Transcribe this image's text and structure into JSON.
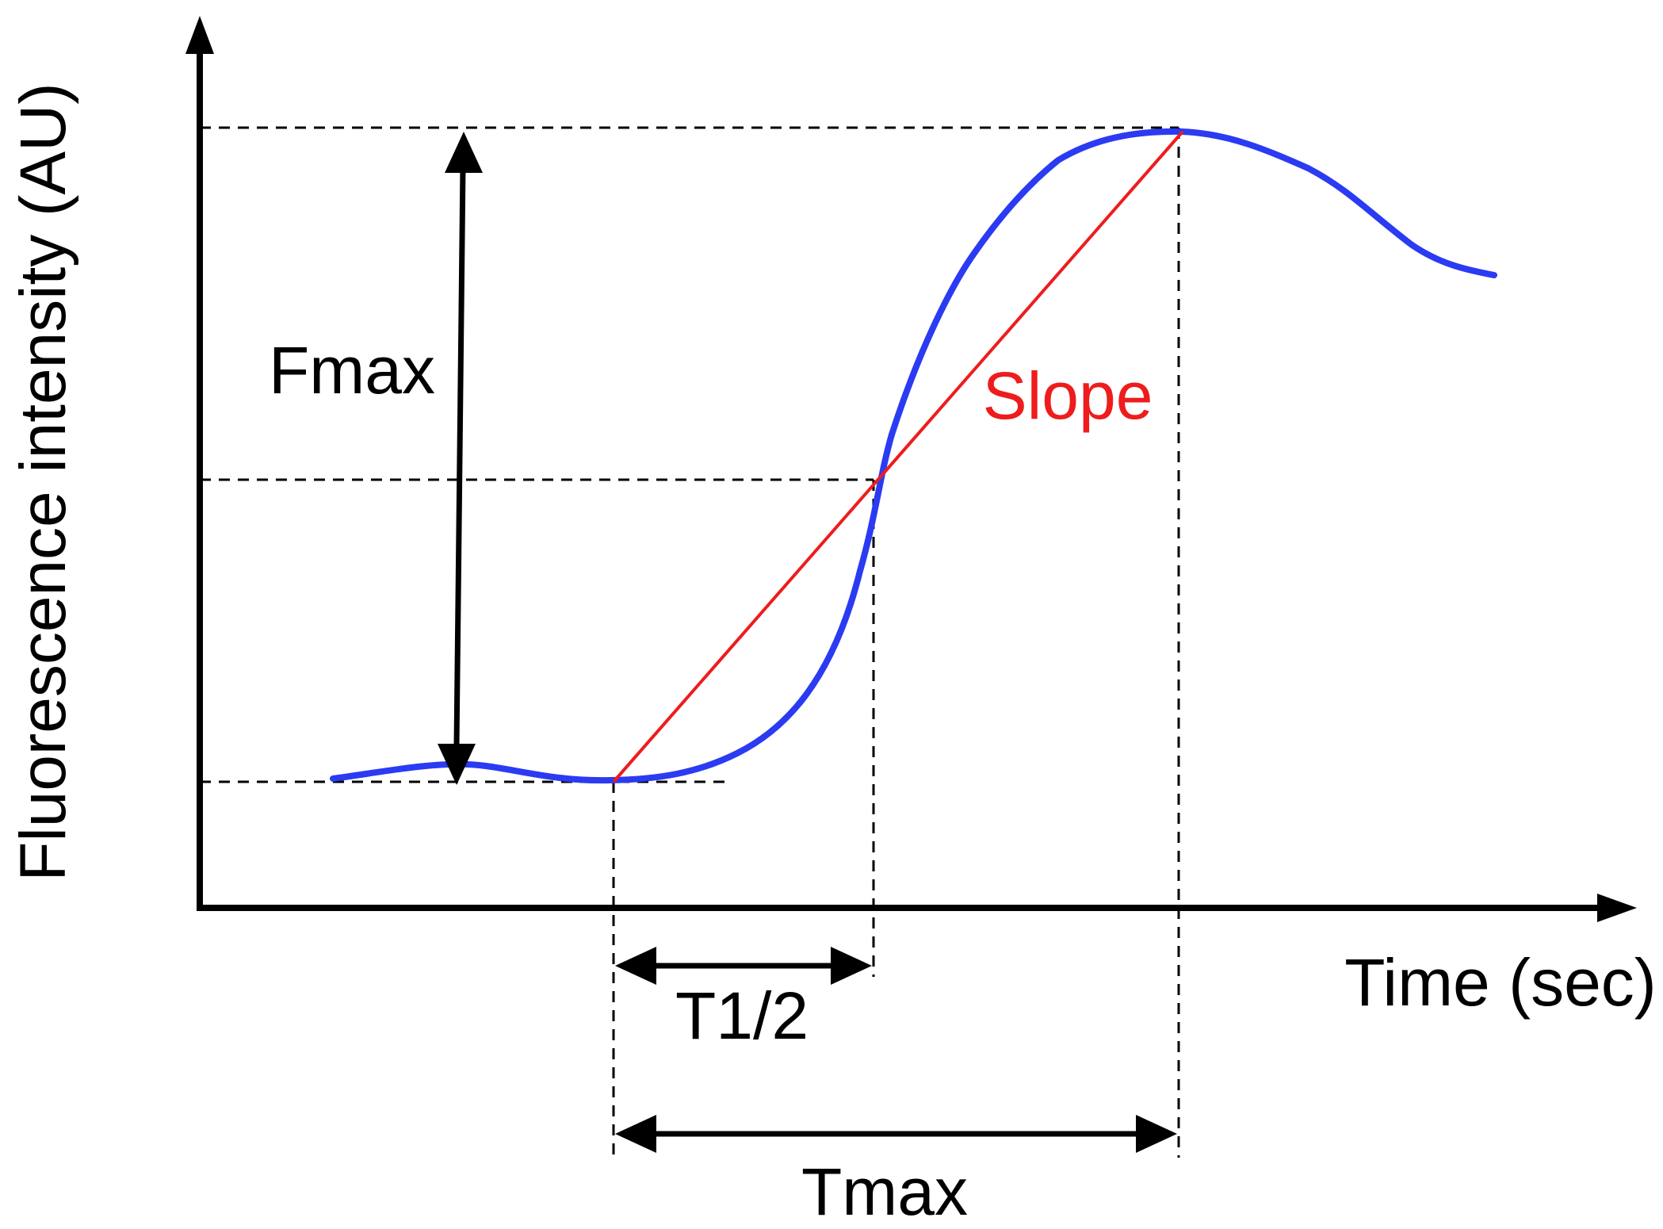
{
  "labels": {
    "y_axis": "Fluorescence intensity (AU)",
    "x_axis": "Time (sec)",
    "fmax": "Fmax",
    "slope": "Slope",
    "t_half": "T1/2",
    "tmax": "Tmax"
  },
  "colors": {
    "curve": "#2b3bf2",
    "slope": "#ee1c1c",
    "ink": "#000000"
  }
}
